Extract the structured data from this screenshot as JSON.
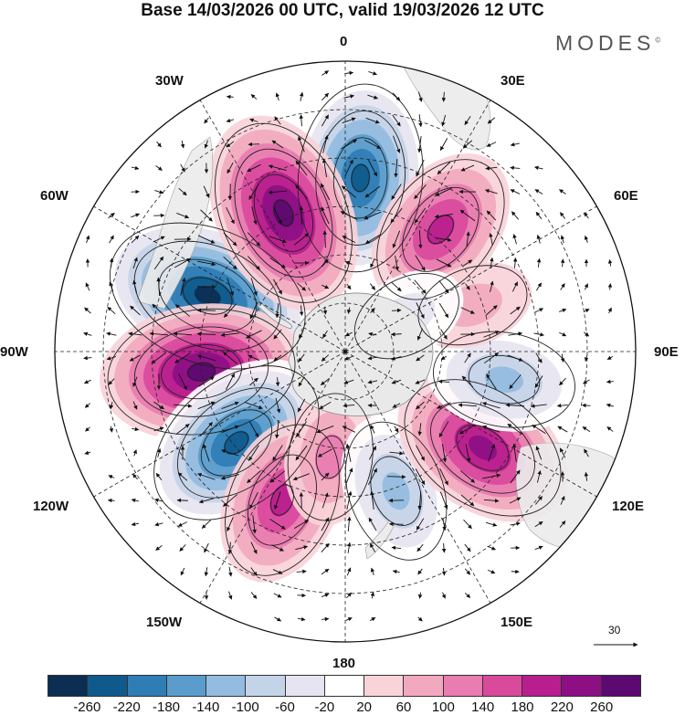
{
  "title": "Base 14/03/2026 00 UTC, valid 19/03/2026 12 UTC",
  "brand": "MODES",
  "brand_mark": "©",
  "longitudes": {
    "top": "0",
    "top_right": "30E",
    "upper_right": "60E",
    "right": "90E",
    "lower_right": "120E",
    "bottom_right": "150E",
    "bottom": "180",
    "bottom_left": "150W",
    "lower_left": "120W",
    "left": "90W",
    "upper_left": "60W",
    "top_left": "30W"
  },
  "reference_vector": "30",
  "legend": {
    "colors": [
      "#0b2e52",
      "#0f5a8c",
      "#2f7db5",
      "#5a9dcc",
      "#93bce0",
      "#c4d4e8",
      "#e6e4f0",
      "#ffffff",
      "#f8d3d8",
      "#f2a9bf",
      "#e97cb0",
      "#d94a9d",
      "#b81e8d",
      "#8c0f84",
      "#5a0a70"
    ],
    "ticks": [
      "-260",
      "-220",
      "-180",
      "-140",
      "-100",
      "-60",
      "-20",
      "20",
      "60",
      "100",
      "140",
      "180",
      "220",
      "260"
    ]
  },
  "anomalies": [
    {
      "sign": "neg",
      "value": -260,
      "lon": 5,
      "colat": 54
    },
    {
      "sign": "neg",
      "value": -280,
      "lon": -68,
      "colat": 46
    },
    {
      "sign": "pos",
      "value": 240,
      "lon": -24,
      "colat": 47
    },
    {
      "sign": "pos",
      "value": 160,
      "lon": 38,
      "colat": 48
    },
    {
      "sign": "pos",
      "value": 240,
      "lon": -98,
      "colat": 45
    },
    {
      "sign": "neg",
      "value": -260,
      "lon": -130,
      "colat": 44
    },
    {
      "sign": "pos",
      "value": 160,
      "lon": -157,
      "colat": 50
    },
    {
      "sign": "pos",
      "value": 100,
      "lon": -172,
      "colat": 33
    },
    {
      "sign": "neg",
      "value": -140,
      "lon": 160,
      "colat": 46
    },
    {
      "sign": "pos",
      "value": 200,
      "lon": 125,
      "colat": 52
    },
    {
      "sign": "neg",
      "value": -140,
      "lon": 100,
      "colat": 50
    },
    {
      "sign": "pos",
      "value": 60,
      "lon": 70,
      "colat": 42
    },
    {
      "sign": "neg",
      "value": -60,
      "lon": 60,
      "colat": 22
    }
  ]
}
